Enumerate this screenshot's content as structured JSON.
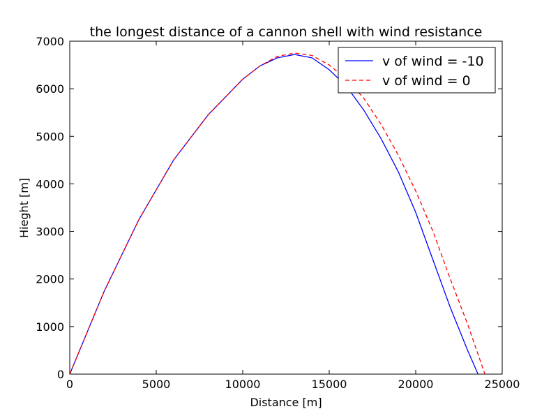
{
  "chart_data": {
    "type": "line",
    "title": "the longest distance of a cannon shell with wind resistance",
    "xlabel": "Distance [m]",
    "ylabel": "Hieght [m]",
    "xlim": [
      0,
      25000
    ],
    "ylim": [
      0,
      7000
    ],
    "xticks": [
      0,
      5000,
      10000,
      15000,
      20000,
      25000
    ],
    "yticks": [
      0,
      1000,
      2000,
      3000,
      4000,
      5000,
      6000,
      7000
    ],
    "xtick_labels": [
      "0",
      "5000",
      "10000",
      "15000",
      "20000",
      "25000"
    ],
    "ytick_labels": [
      "0",
      "1000",
      "2000",
      "3000",
      "4000",
      "5000",
      "6000",
      "7000"
    ],
    "grid": false,
    "legend_position": "top-right",
    "series": [
      {
        "name": "v of wind = -10",
        "color": "#0000ff",
        "style": "solid",
        "x": [
          0,
          2000,
          4000,
          6000,
          8000,
          10000,
          11000,
          12000,
          13000,
          14000,
          15000,
          16000,
          17000,
          18000,
          19000,
          20000,
          21000,
          22000,
          23000,
          23600
        ],
        "y": [
          0,
          1750,
          3250,
          4500,
          5450,
          6200,
          6480,
          6650,
          6720,
          6650,
          6400,
          6050,
          5550,
          4950,
          4250,
          3400,
          2400,
          1400,
          500,
          0
        ]
      },
      {
        "name": "v of wind = 0",
        "color": "#ff0000",
        "style": "dashed",
        "x": [
          0,
          2000,
          4000,
          6000,
          8000,
          10000,
          11000,
          12000,
          13000,
          14000,
          15000,
          16000,
          17000,
          18000,
          19000,
          20000,
          21000,
          22000,
          23000,
          24000
        ],
        "y": [
          0,
          1750,
          3250,
          4500,
          5450,
          6200,
          6480,
          6680,
          6750,
          6700,
          6500,
          6200,
          5800,
          5250,
          4600,
          3850,
          3000,
          2000,
          1050,
          0
        ]
      }
    ]
  }
}
